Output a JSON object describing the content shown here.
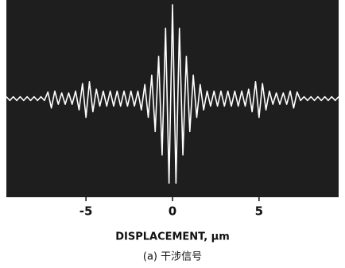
{
  "chart_data": {
    "type": "line",
    "xlabel": "DISPLACEMENT, μm",
    "caption": "(a) 干涉信号",
    "x": [
      -9.6,
      -9.4,
      -9.2,
      -9.0,
      -8.8,
      -8.6,
      -8.4,
      -8.2,
      -8.0,
      -7.8,
      -7.6,
      -7.4,
      -7.2,
      -7.0,
      -6.8,
      -6.6,
      -6.4,
      -6.2,
      -6.0,
      -5.8,
      -5.6,
      -5.4,
      -5.2,
      -5.0,
      -4.8,
      -4.6,
      -4.4,
      -4.2,
      -4.0,
      -3.8,
      -3.6,
      -3.4,
      -3.2,
      -3.0,
      -2.8,
      -2.6,
      -2.4,
      -2.2,
      -2.0,
      -1.8,
      -1.6,
      -1.4,
      -1.2,
      -1.0,
      -0.8,
      -0.6,
      -0.4,
      -0.2,
      0,
      0.2,
      0.4,
      0.6,
      0.8,
      1.0,
      1.2,
      1.4,
      1.6,
      1.8,
      2.0,
      2.2,
      2.4,
      2.6,
      2.8,
      3.0,
      3.2,
      3.4,
      3.6,
      3.8,
      4.0,
      4.2,
      4.4,
      4.6,
      4.8,
      5.0,
      5.2,
      5.4,
      5.6,
      5.8,
      6.0,
      6.2,
      6.4,
      6.6,
      6.8,
      7.0,
      7.2,
      7.4,
      7.6,
      7.8,
      8.0,
      8.2,
      8.4,
      8.6,
      8.8,
      9.0,
      9.2,
      9.4,
      9.6
    ],
    "series": [
      {
        "color": "#ffffff",
        "values": [
          0.02,
          -0.02,
          0.02,
          -0.02,
          0.02,
          -0.02,
          0.02,
          -0.02,
          0.02,
          -0.02,
          0.02,
          -0.02,
          0.07,
          -0.1,
          0.08,
          -0.06,
          0.06,
          -0.06,
          0.06,
          -0.06,
          0.08,
          -0.12,
          0.16,
          -0.2,
          0.18,
          -0.14,
          0.1,
          -0.08,
          0.08,
          -0.08,
          0.08,
          -0.08,
          0.08,
          -0.08,
          0.08,
          -0.08,
          0.08,
          -0.08,
          0.08,
          -0.12,
          0.15,
          -0.2,
          0.25,
          -0.35,
          0.45,
          -0.6,
          0.75,
          -0.9,
          1,
          -0.9,
          0.75,
          -0.6,
          0.45,
          -0.35,
          0.25,
          -0.2,
          0.15,
          -0.12,
          0.08,
          -0.08,
          0.08,
          -0.08,
          0.08,
          -0.08,
          0.08,
          -0.08,
          0.08,
          -0.08,
          0.08,
          -0.08,
          0.1,
          -0.14,
          0.18,
          -0.2,
          0.16,
          -0.12,
          0.08,
          -0.06,
          0.06,
          -0.06,
          0.06,
          -0.06,
          0.08,
          -0.1,
          0.07,
          -0.02,
          0.02,
          -0.02,
          0.02,
          -0.02,
          0.02,
          -0.02,
          0.02,
          -0.02,
          0.02,
          -0.02,
          0.02
        ]
      }
    ],
    "xlim": [
      -9.6,
      9.6
    ],
    "ylim": [
      -1.05,
      1.05
    ],
    "xticks": [
      -5,
      0,
      5
    ],
    "background": "#1e1e1e"
  }
}
